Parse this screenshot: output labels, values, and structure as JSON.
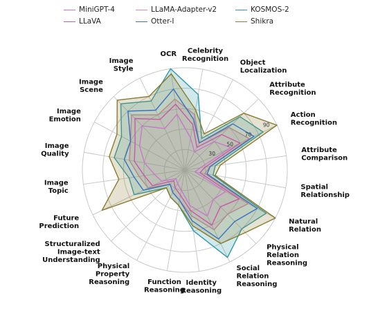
{
  "legend": [
    {
      "name": "MiniGPT-4",
      "color": "#c678c8"
    },
    {
      "name": "LLaMA-Adapter-v2",
      "color": "#e38aa3"
    },
    {
      "name": "KOSMOS-2",
      "color": "#2e9aa6"
    },
    {
      "name": "LLaVA",
      "color": "#c45aa8"
    },
    {
      "name": "Otter-I",
      "color": "#3b6fc2"
    },
    {
      "name": "Shikra",
      "color": "#8a7a2c"
    }
  ],
  "chart_data": {
    "type": "radar",
    "title": "",
    "categories": [
      "Celebrity\nRecognition",
      "Object\nLocalization",
      "Attribute\nRecognition",
      "Action\nRecognition",
      "Attribute\nComparison",
      "Spatial\nRelationship",
      "Natural\nRelation",
      "Physical\nRelation\nReasoning",
      "Social\nRelation\nReasoning",
      "Identity\nReasoning",
      "Function\nReasoning",
      "Physical\nProperty\nReasoning",
      "Structuralized\nImage-text\nUnderstanding",
      "Future\nPrediction",
      "Image\nTopic",
      "Image\nQuality",
      "Image\nEmotion",
      "Image\nScene",
      "Image\nStyle",
      "OCR"
    ],
    "radial_ticks": [
      30,
      50,
      70,
      90
    ],
    "rlim": [
      0,
      100
    ],
    "grid": true,
    "series": [
      {
        "name": "MiniGPT-4",
        "color": "#c678c8",
        "fill": false,
        "values": [
          32,
          20,
          40,
          50,
          15,
          10,
          45,
          40,
          50,
          35,
          20,
          15,
          12,
          25,
          30,
          40,
          50,
          60,
          45,
          55
        ]
      },
      {
        "name": "LLaMA-Adapter-v2",
        "color": "#e38aa3",
        "fill": true,
        "values": [
          55,
          30,
          60,
          70,
          25,
          20,
          70,
          60,
          65,
          45,
          30,
          25,
          20,
          40,
          45,
          55,
          60,
          75,
          60,
          70
        ]
      },
      {
        "name": "KOSMOS-2",
        "color": "#2e9aa6",
        "fill": true,
        "values": [
          75,
          35,
          75,
          85,
          30,
          28,
          90,
          80,
          95,
          60,
          35,
          30,
          25,
          55,
          55,
          70,
          70,
          90,
          75,
          100
        ]
      },
      {
        "name": "LLaVA",
        "color": "#c45aa8",
        "fill": false,
        "values": [
          45,
          25,
          50,
          60,
          20,
          15,
          60,
          50,
          60,
          40,
          25,
          20,
          15,
          35,
          40,
          50,
          55,
          70,
          55,
          65
        ]
      },
      {
        "name": "Otter-I",
        "color": "#3b6fc2",
        "fill": false,
        "values": [
          50,
          30,
          65,
          75,
          25,
          22,
          80,
          70,
          75,
          50,
          30,
          25,
          20,
          45,
          50,
          60,
          60,
          80,
          65,
          80
        ]
      },
      {
        "name": "Shikra",
        "color": "#8a7a2c",
        "fill": true,
        "values": [
          60,
          40,
          80,
          100,
          35,
          30,
          100,
          85,
          80,
          55,
          35,
          30,
          25,
          90,
          65,
          75,
          75,
          95,
          80,
          95
        ]
      }
    ]
  }
}
